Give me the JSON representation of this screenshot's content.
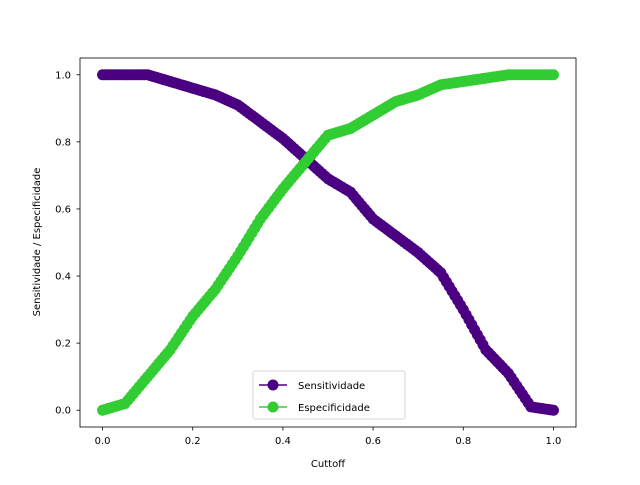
{
  "chart_data": {
    "type": "line",
    "title": "",
    "xlabel": "Cuttoff",
    "ylabel": "Sensitividade / Especificidade",
    "xlim": [
      -0.05,
      1.05
    ],
    "ylim": [
      -0.05,
      1.05
    ],
    "xticks": [
      0.0,
      0.2,
      0.4,
      0.6,
      0.8,
      1.0
    ],
    "yticks": [
      0.0,
      0.2,
      0.4,
      0.6,
      0.8,
      1.0
    ],
    "xtick_labels": [
      "0.0",
      "0.2",
      "0.4",
      "0.6",
      "0.8",
      "1.0"
    ],
    "ytick_labels": [
      "0.0",
      "0.2",
      "0.4",
      "0.6",
      "0.8",
      "1.0"
    ],
    "grid": false,
    "legend_position": "lower center",
    "series": [
      {
        "name": "Sensitividade",
        "color": "#4b0082",
        "marker": "circle",
        "x": [
          0.0,
          0.05,
          0.1,
          0.15,
          0.2,
          0.25,
          0.3,
          0.35,
          0.4,
          0.45,
          0.5,
          0.55,
          0.6,
          0.65,
          0.7,
          0.75,
          0.8,
          0.85,
          0.9,
          0.95,
          1.0
        ],
        "y": [
          1.0,
          1.0,
          1.0,
          0.98,
          0.96,
          0.94,
          0.91,
          0.86,
          0.81,
          0.75,
          0.69,
          0.65,
          0.57,
          0.52,
          0.47,
          0.41,
          0.3,
          0.18,
          0.11,
          0.01,
          0.0
        ]
      },
      {
        "name": "Especificidade",
        "color": "#32cd32",
        "marker": "circle",
        "x": [
          0.0,
          0.05,
          0.1,
          0.15,
          0.2,
          0.25,
          0.3,
          0.35,
          0.4,
          0.45,
          0.5,
          0.55,
          0.6,
          0.65,
          0.7,
          0.75,
          0.8,
          0.85,
          0.9,
          0.95,
          1.0
        ],
        "y": [
          0.0,
          0.02,
          0.1,
          0.18,
          0.28,
          0.36,
          0.46,
          0.57,
          0.66,
          0.74,
          0.82,
          0.84,
          0.88,
          0.92,
          0.94,
          0.97,
          0.98,
          0.99,
          1.0,
          1.0,
          1.0
        ]
      }
    ]
  }
}
